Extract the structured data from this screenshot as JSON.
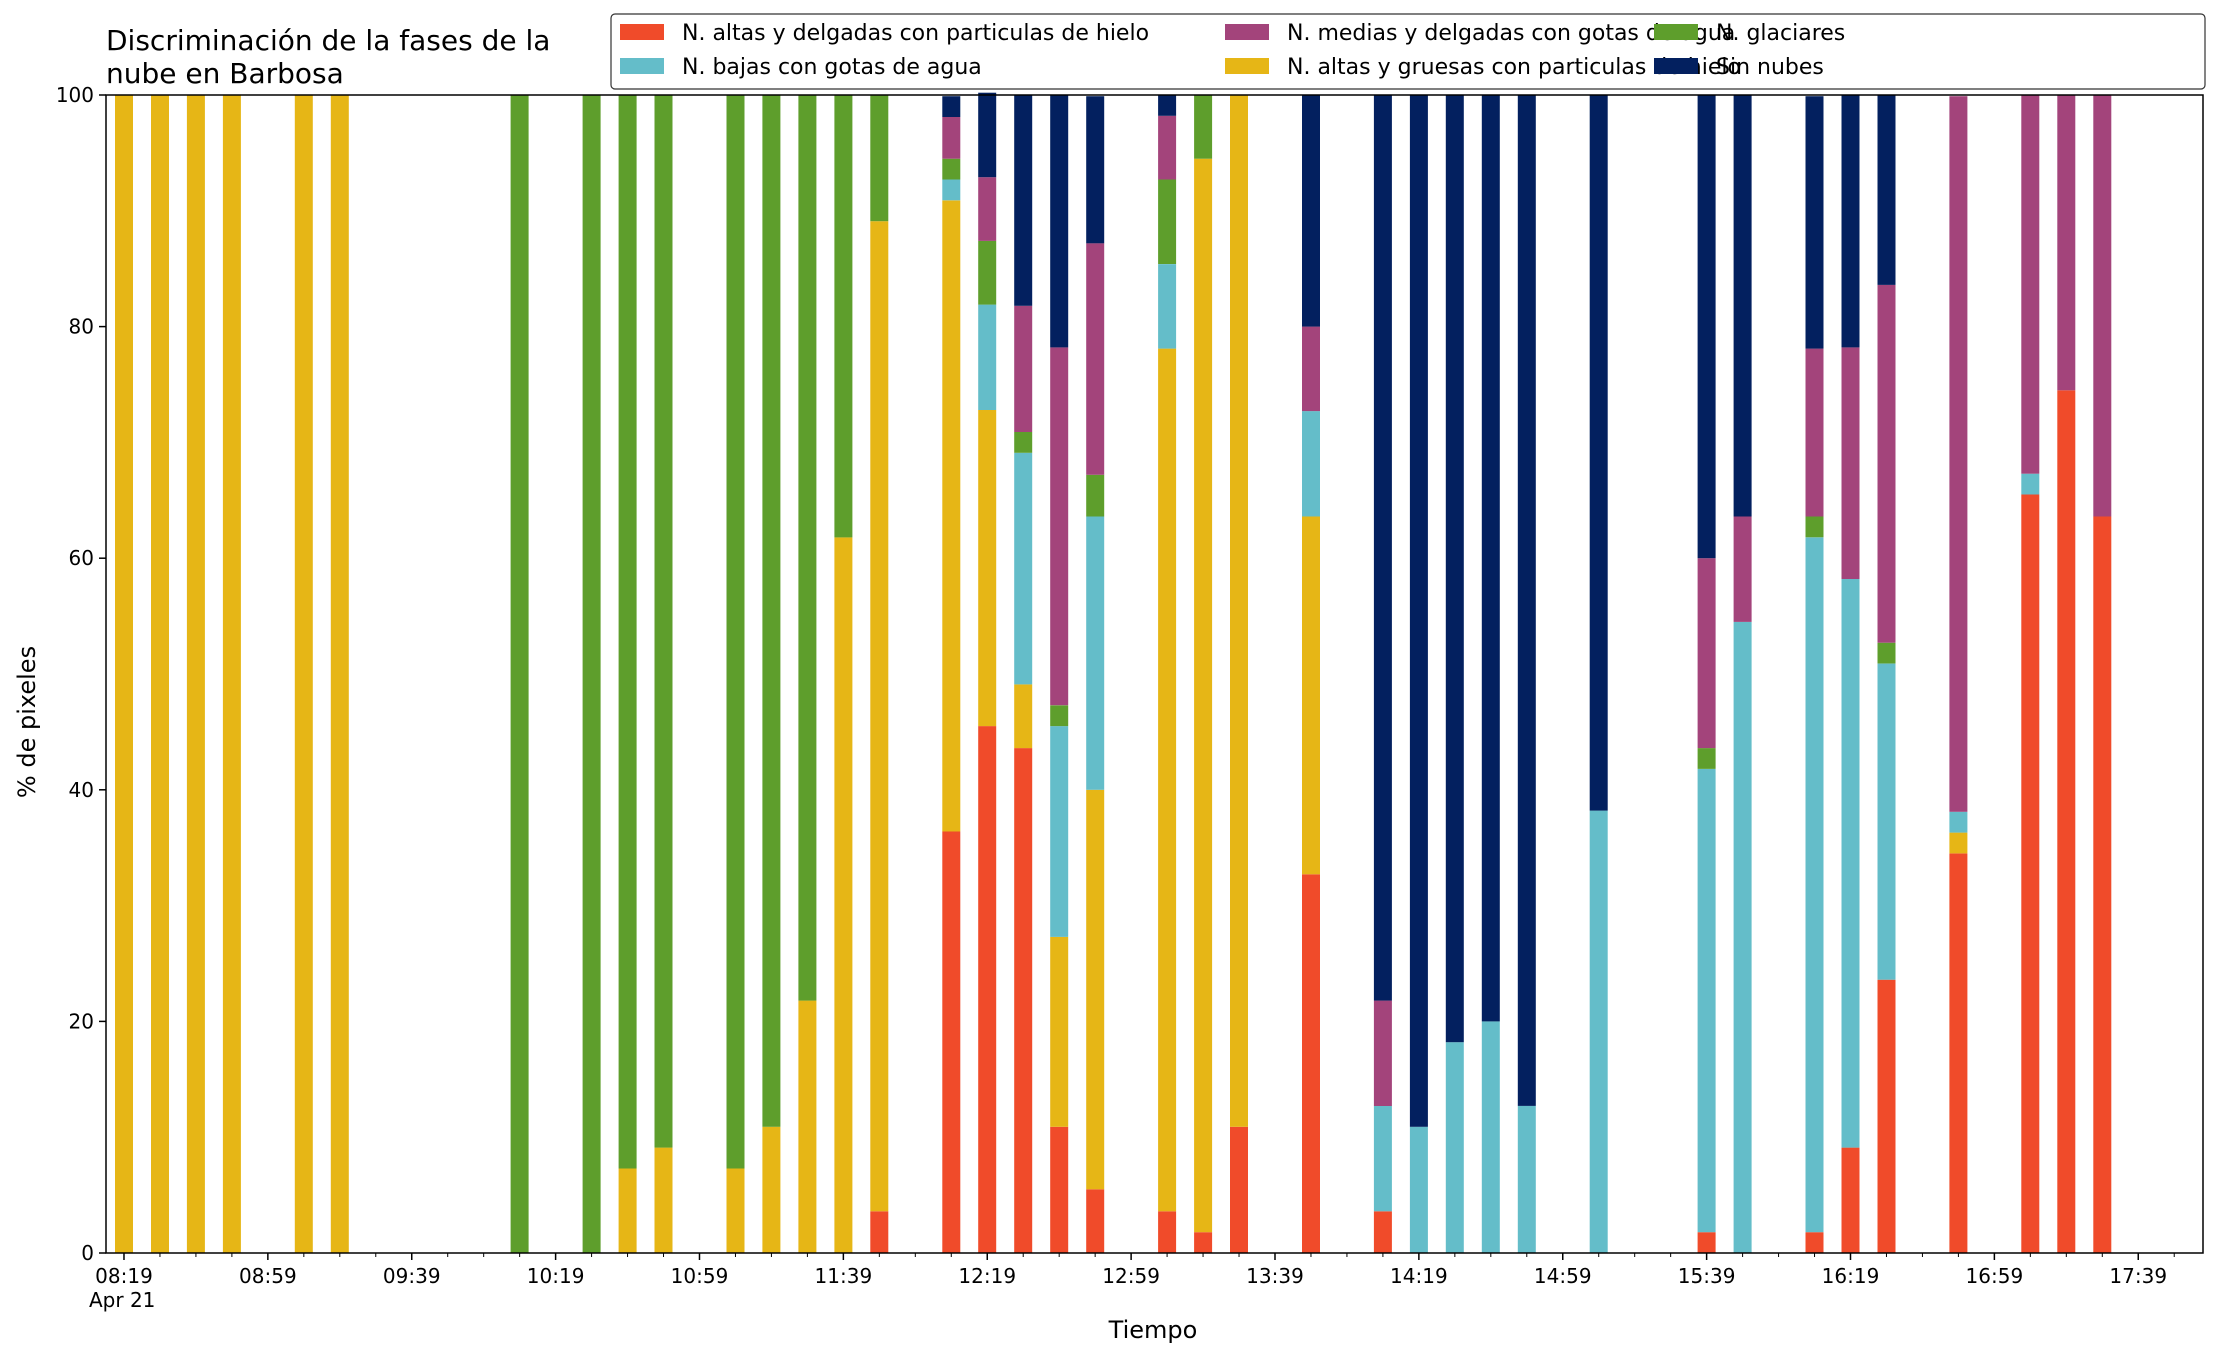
{
  "chart_data": {
    "type": "bar",
    "stacked": true,
    "title_lines": [
      "Discriminación de la fases de la",
      "nube en Barbosa"
    ],
    "xlabel": "Tiempo",
    "ylabel": "% de pixeles",
    "ylim": [
      0,
      100
    ],
    "y_ticks": [
      "0",
      "20",
      "40",
      "60",
      "80",
      "100"
    ],
    "x_range_minutes": [
      "08:14",
      "17:57"
    ],
    "x_tick_labels": [
      "08:19",
      "08:59",
      "09:39",
      "10:19",
      "10:59",
      "11:39",
      "12:19",
      "12:59",
      "13:39",
      "14:19",
      "14:59",
      "15:39",
      "16:19",
      "16:59",
      "17:39"
    ],
    "x_date_label": "Apr 21",
    "legend_position": "top-right",
    "legend_ncol": 3,
    "grid": false,
    "series": [
      {
        "name": "N. altas y delgadas con particulas de hielo",
        "color": "#f04b2a"
      },
      {
        "name": "N. altas y gruesas con particulas de hielo",
        "color": "#e6b616"
      },
      {
        "name": "N. bajas con gotas de agua",
        "color": "#64bdc9"
      },
      {
        "name": "N. glaciares",
        "color": "#5e9e2c"
      },
      {
        "name": "N. medias y delgadas con gotas de agua",
        "color": "#a3447b"
      },
      {
        "name": "Sin nubes",
        "color": "#03205f"
      }
    ],
    "legend_order": [
      0,
      2,
      4,
      1,
      3,
      5
    ],
    "x": [
      "08:19",
      "08:29",
      "08:39",
      "08:49",
      "09:09",
      "09:19",
      "10:09",
      "10:29",
      "10:39",
      "10:49",
      "11:09",
      "11:19",
      "11:29",
      "11:39",
      "11:49",
      "12:09",
      "12:19",
      "12:29",
      "12:39",
      "12:49",
      "13:09",
      "13:19",
      "13:29",
      "13:49",
      "14:09",
      "14:19",
      "14:29",
      "14:39",
      "14:49",
      "15:09",
      "15:39",
      "15:49",
      "16:09",
      "16:19",
      "16:29",
      "16:49",
      "17:09",
      "17:19",
      "17:29"
    ],
    "values": [
      [
        0,
        100,
        0,
        0,
        0,
        0
      ],
      [
        0,
        100,
        0,
        0,
        0,
        0
      ],
      [
        0,
        100,
        0,
        0,
        0,
        0
      ],
      [
        0,
        100,
        0,
        0,
        0,
        0
      ],
      [
        0,
        100,
        0,
        0,
        0,
        0
      ],
      [
        0,
        100,
        0,
        0,
        0,
        0
      ],
      [
        0,
        0,
        0,
        100,
        0,
        0
      ],
      [
        0,
        0,
        0,
        100,
        0,
        0
      ],
      [
        0,
        7.3,
        0,
        92.7,
        0,
        0
      ],
      [
        0,
        9.1,
        0,
        90.9,
        0,
        0
      ],
      [
        0,
        7.3,
        0,
        92.7,
        0,
        0
      ],
      [
        0,
        10.9,
        0,
        89.1,
        0,
        0
      ],
      [
        0,
        21.8,
        0,
        78.2,
        0,
        0
      ],
      [
        0,
        61.8,
        0,
        38.2,
        0,
        0
      ],
      [
        3.6,
        85.5,
        0,
        10.9,
        0,
        0
      ],
      [
        36.4,
        54.5,
        1.8,
        1.8,
        3.6,
        1.8
      ],
      [
        45.5,
        27.3,
        9.1,
        5.5,
        5.5,
        7.3
      ],
      [
        43.6,
        5.5,
        20.0,
        1.8,
        10.9,
        18.2
      ],
      [
        10.9,
        16.4,
        18.2,
        1.8,
        30.9,
        21.8
      ],
      [
        5.5,
        34.5,
        23.6,
        3.6,
        20.0,
        12.7
      ],
      [
        3.6,
        74.5,
        7.3,
        7.3,
        5.5,
        1.8
      ],
      [
        1.8,
        92.7,
        0,
        5.5,
        0,
        0
      ],
      [
        10.9,
        89.1,
        0,
        0,
        0,
        0
      ],
      [
        32.7,
        30.9,
        9.1,
        0,
        7.3,
        20.0
      ],
      [
        3.6,
        0,
        9.1,
        0,
        9.1,
        78.2
      ],
      [
        0,
        0,
        10.9,
        0,
        0,
        89.1
      ],
      [
        0,
        0,
        18.2,
        0,
        0,
        81.8
      ],
      [
        0,
        0,
        20.0,
        0,
        0,
        80.0
      ],
      [
        0,
        0,
        12.7,
        0,
        0,
        87.3
      ],
      [
        0,
        0,
        38.2,
        0,
        0,
        61.8
      ],
      [
        1.8,
        0,
        40.0,
        1.8,
        16.4,
        40.0
      ],
      [
        0,
        0,
        54.5,
        0,
        9.1,
        36.4
      ],
      [
        1.8,
        0,
        60.0,
        1.8,
        14.5,
        21.8
      ],
      [
        9.1,
        0,
        49.1,
        0,
        20.0,
        21.8
      ],
      [
        23.6,
        0,
        27.3,
        1.8,
        30.9,
        16.4
      ],
      [
        34.5,
        1.8,
        1.8,
        0,
        61.8,
        0
      ],
      [
        65.5,
        0,
        1.8,
        0,
        32.7,
        0
      ],
      [
        74.5,
        0,
        0,
        0,
        25.5,
        0
      ],
      [
        63.6,
        0,
        0,
        0,
        36.4,
        0
      ]
    ]
  }
}
